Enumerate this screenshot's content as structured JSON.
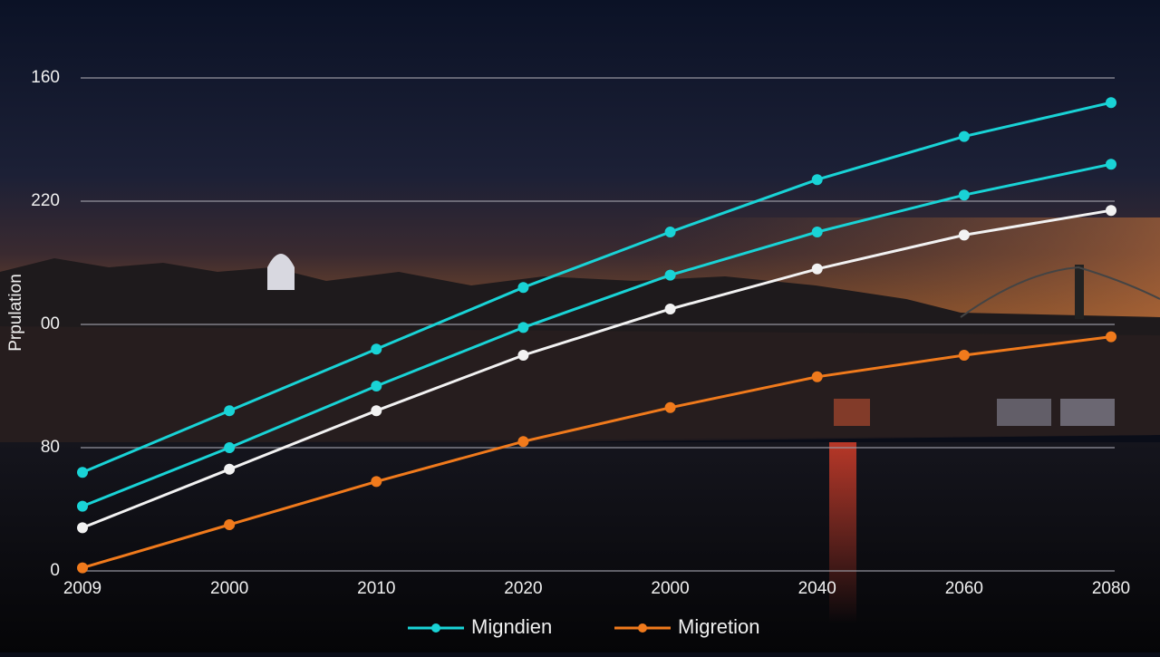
{
  "chart_data": {
    "type": "line",
    "ylabel": "Prpulation",
    "categories": [
      "2009",
      "2000",
      "2010",
      "2020",
      "2000",
      "2040",
      "2060",
      "2080"
    ],
    "series": [
      {
        "name": "Migndien",
        "color": "#19d3d6",
        "values": [
          32,
          52,
          72,
          92,
          110,
          127,
          141,
          152
        ]
      },
      {
        "color": "#19d3d6",
        "values": [
          21,
          40,
          60,
          79,
          96,
          110,
          122,
          132
        ]
      },
      {
        "color": "#f2f2f2",
        "values": [
          14,
          33,
          52,
          70,
          85,
          98,
          109,
          117
        ]
      },
      {
        "name": "Migretion",
        "color": "#f07a1c",
        "values": [
          1,
          15,
          29,
          42,
          53,
          63,
          70,
          76
        ]
      }
    ],
    "ylim": [
      0,
      160
    ],
    "yticks": [
      0,
      {
        "value": 40,
        "label": "80"
      },
      {
        "value": 80,
        "label": "00"
      },
      {
        "value": 120,
        "label": "220"
      },
      160
    ],
    "grid": true
  }
}
